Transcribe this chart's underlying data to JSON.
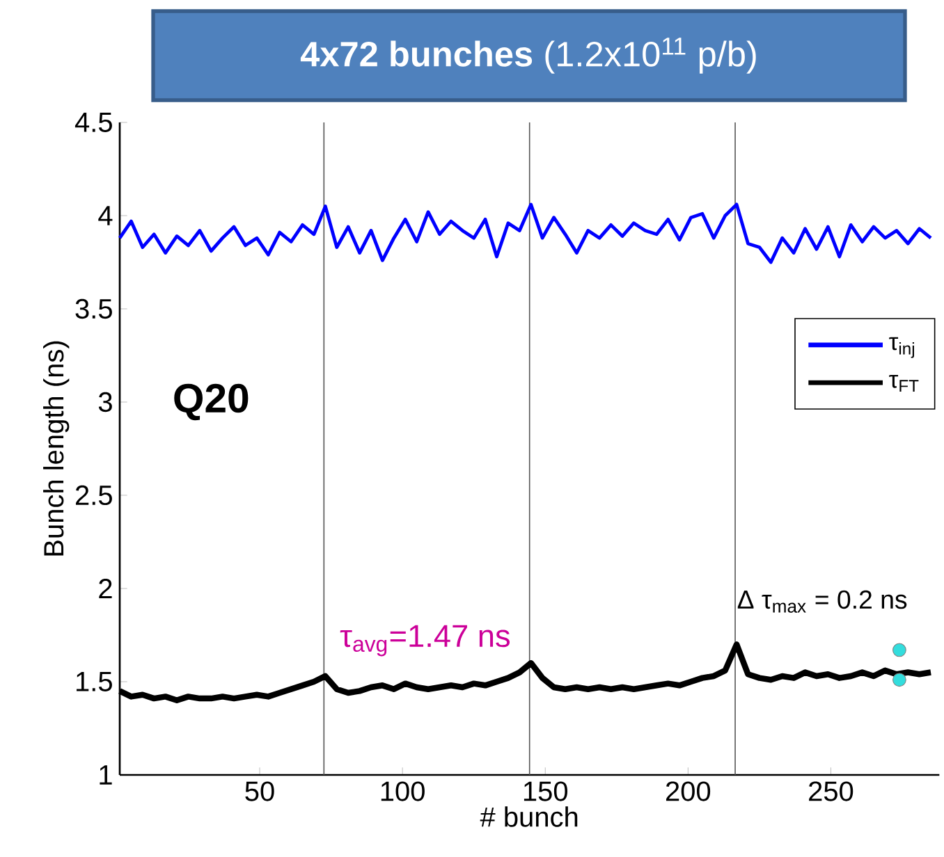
{
  "chart_data": {
    "type": "line",
    "title": "**4x72 bunches** (1.2x10$^{11}$ p/b)",
    "xlabel": "# bunch",
    "ylabel": "Bunch length (ns)",
    "xlim": [
      1,
      288
    ],
    "ylim": [
      1,
      4.5
    ],
    "xticks": [
      50,
      100,
      150,
      200,
      250
    ],
    "yticks": [
      1,
      1.5,
      2,
      2.5,
      3,
      3.5,
      4,
      4.5
    ],
    "legend": "right",
    "annotations": [
      "Q20",
      "τ$_{avg}$=1.47 ns",
      "Δ τ$_{max}$ = 0.2 ns"
    ],
    "ref_lines": [
      {
        "axis": "x",
        "value": 72.5,
        "color": "#555555"
      },
      {
        "axis": "x",
        "value": 144.5,
        "color": "#555555"
      },
      {
        "axis": "x",
        "value": 216.5,
        "color": "#555555"
      }
    ],
    "x": [
      1,
      5,
      9,
      13,
      17,
      21,
      25,
      29,
      33,
      37,
      41,
      45,
      49,
      53,
      57,
      61,
      65,
      69,
      73,
      77,
      81,
      85,
      89,
      93,
      97,
      101,
      105,
      109,
      113,
      117,
      121,
      125,
      129,
      133,
      137,
      141,
      145,
      149,
      153,
      157,
      161,
      165,
      169,
      173,
      177,
      181,
      185,
      189,
      193,
      197,
      201,
      205,
      209,
      213,
      217,
      221,
      225,
      229,
      233,
      237,
      241,
      245,
      249,
      253,
      257,
      261,
      265,
      269,
      273,
      277,
      281,
      285
    ],
    "series": [
      {
        "name": "τ$_{inj}$",
        "color": "#0000ff",
        "values": [
          3.88,
          3.97,
          3.83,
          3.9,
          3.8,
          3.89,
          3.84,
          3.92,
          3.81,
          3.88,
          3.94,
          3.84,
          3.88,
          3.79,
          3.91,
          3.86,
          3.95,
          3.9,
          4.05,
          3.83,
          3.94,
          3.8,
          3.92,
          3.76,
          3.88,
          3.98,
          3.86,
          4.02,
          3.9,
          3.97,
          3.92,
          3.88,
          3.98,
          3.78,
          3.96,
          3.92,
          4.06,
          3.88,
          3.99,
          3.9,
          3.8,
          3.92,
          3.88,
          3.95,
          3.89,
          3.96,
          3.92,
          3.9,
          3.98,
          3.87,
          3.99,
          4.01,
          3.88,
          4.0,
          4.06,
          3.85,
          3.83,
          3.75,
          3.88,
          3.8,
          3.93,
          3.82,
          3.94,
          3.78,
          3.95,
          3.86,
          3.94,
          3.88,
          3.92,
          3.85,
          3.93,
          3.88
        ]
      },
      {
        "name": "τ$_{FT}$",
        "color": "#000000",
        "values": [
          1.45,
          1.42,
          1.43,
          1.41,
          1.42,
          1.4,
          1.42,
          1.41,
          1.41,
          1.42,
          1.41,
          1.42,
          1.43,
          1.42,
          1.44,
          1.46,
          1.48,
          1.5,
          1.53,
          1.46,
          1.44,
          1.45,
          1.47,
          1.48,
          1.46,
          1.49,
          1.47,
          1.46,
          1.47,
          1.48,
          1.47,
          1.49,
          1.48,
          1.5,
          1.52,
          1.55,
          1.6,
          1.52,
          1.47,
          1.46,
          1.47,
          1.46,
          1.47,
          1.46,
          1.47,
          1.46,
          1.47,
          1.48,
          1.49,
          1.48,
          1.5,
          1.52,
          1.53,
          1.56,
          1.7,
          1.54,
          1.52,
          1.51,
          1.53,
          1.52,
          1.55,
          1.53,
          1.54,
          1.52,
          1.53,
          1.55,
          1.53,
          1.56,
          1.54,
          1.55,
          1.54,
          1.55
        ]
      },
      {
        "type": "scatter",
        "color": "#33dddd",
        "x": [
          274,
          274
        ],
        "values": [
          1.67,
          1.51
        ]
      }
    ]
  }
}
